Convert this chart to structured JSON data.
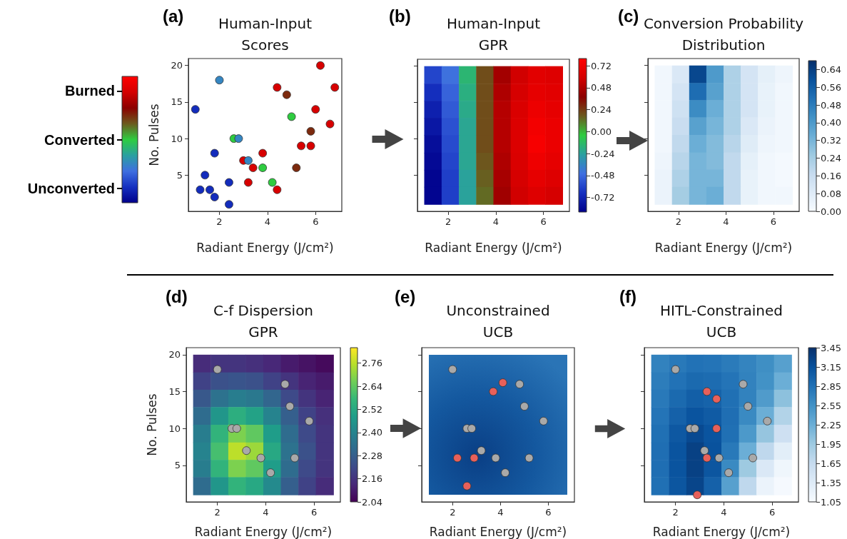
{
  "chart_data": [
    {
      "type": "scatter",
      "title": "(a)",
      "subtitle": "Human-Input Scores",
      "xlabel": "Radiant Energy (J/cm²)",
      "ylabel": "No. Pulses",
      "marker": "circle",
      "x": [
        6.2,
        2.0,
        4.4,
        6.8,
        4.8,
        1.0,
        6.0,
        5.0,
        6.6,
        5.8,
        2.6,
        2.8,
        5.4,
        5.8,
        1.8,
        3.8,
        3.0,
        3.2,
        3.4,
        3.8,
        5.2,
        1.4,
        2.4,
        3.2,
        4.2,
        1.2,
        1.6,
        4.4,
        1.8,
        2.4
      ],
      "values": [
        20,
        18,
        17,
        17,
        16,
        14,
        14,
        13,
        12,
        11,
        10,
        10,
        9,
        9,
        8,
        8,
        7,
        7,
        6,
        6,
        6,
        5,
        4,
        4,
        4,
        3,
        3,
        3,
        2,
        1
      ],
      "cvalues": [
        1,
        -0.5,
        1,
        1,
        0.5,
        -1,
        1,
        0,
        1,
        0.5,
        0,
        -0.5,
        1,
        1,
        -1,
        1,
        1,
        -0.5,
        1,
        0,
        0.5,
        -1,
        -1,
        1,
        0,
        -1,
        -1,
        1,
        -1,
        -1
      ],
      "clim": [
        -1.3,
        1.3
      ],
      "cticks": [
        {
          "value": -1,
          "label": "Unconverted"
        },
        {
          "value": 0,
          "label": "Converted"
        },
        {
          "value": 1,
          "label": "Burned"
        }
      ],
      "xlim": [
        0.71,
        7.09
      ],
      "xticks": [
        2,
        4,
        6
      ],
      "ylim": [
        0.05,
        20.95
      ],
      "yticks": [
        5,
        10,
        15,
        20
      ]
    },
    {
      "type": "heatmap",
      "title": "(b)",
      "subtitle": "Human-Input GPR",
      "xlabel": "Radiant Energy (J/cm²)",
      "x": [
        1.36,
        2.09,
        2.81,
        3.54,
        4.26,
        4.99,
        5.71,
        6.44
      ],
      "y": [
        18.8,
        16.4,
        14.1,
        11.7,
        9.3,
        6.9,
        4.6,
        2.2
      ],
      "cells": [
        [
          -0.6,
          -0.45,
          -0.15,
          0.2,
          0.45,
          0.58,
          0.66,
          0.64
        ],
        [
          -0.68,
          -0.5,
          -0.18,
          0.2,
          0.48,
          0.6,
          0.68,
          0.66
        ],
        [
          -0.74,
          -0.53,
          -0.2,
          0.2,
          0.5,
          0.62,
          0.71,
          0.68
        ],
        [
          -0.78,
          -0.56,
          -0.22,
          0.2,
          0.5,
          0.63,
          0.74,
          0.7
        ],
        [
          -0.82,
          -0.58,
          -0.22,
          0.2,
          0.5,
          0.63,
          0.76,
          0.7
        ],
        [
          -0.84,
          -0.6,
          -0.22,
          0.18,
          0.48,
          0.62,
          0.72,
          0.68
        ],
        [
          -0.86,
          -0.62,
          -0.24,
          0.16,
          0.46,
          0.6,
          0.68,
          0.64
        ],
        [
          -0.86,
          -0.62,
          -0.24,
          0.14,
          0.44,
          0.58,
          0.64,
          0.6
        ]
      ],
      "clim": [
        -0.88,
        0.8
      ],
      "cticks": [
        -0.72,
        -0.48,
        -0.24,
        {
          "value": 0,
          "label": "0.00"
        },
        0.24,
        0.48,
        0.72
      ],
      "xlim": [
        0.71,
        7.09
      ],
      "xticks": [
        2,
        4,
        6
      ],
      "ylim": [
        0.05,
        20.95
      ],
      "yticks": [
        5,
        10,
        15,
        20
      ],
      "tick_labels": "x"
    },
    {
      "type": "heatmap",
      "title": "(c)",
      "subtitle": "Conversion Probability Distribution",
      "xlabel": "Radiant Energy (J/cm²)",
      "x": [
        1.36,
        2.09,
        2.81,
        3.54,
        4.26,
        4.99,
        5.71,
        6.44
      ],
      "y": [
        18.8,
        16.4,
        14.1,
        11.7,
        9.3,
        6.9,
        4.6,
        2.2
      ],
      "cells": [
        [
          0.02,
          0.1,
          0.62,
          0.4,
          0.22,
          0.12,
          0.06,
          0.03
        ],
        [
          0.02,
          0.12,
          0.52,
          0.38,
          0.22,
          0.12,
          0.05,
          0.02
        ],
        [
          0.02,
          0.14,
          0.44,
          0.34,
          0.22,
          0.12,
          0.05,
          0.02
        ],
        [
          0.02,
          0.16,
          0.38,
          0.32,
          0.22,
          0.1,
          0.04,
          0.02
        ],
        [
          0.02,
          0.18,
          0.34,
          0.3,
          0.2,
          0.08,
          0.03,
          0.02
        ],
        [
          0.03,
          0.2,
          0.32,
          0.3,
          0.18,
          0.06,
          0.02,
          0.01
        ],
        [
          0.04,
          0.22,
          0.32,
          0.32,
          0.18,
          0.05,
          0.02,
          0.01
        ],
        [
          0.04,
          0.24,
          0.32,
          0.34,
          0.18,
          0.05,
          0.02,
          0.02
        ]
      ],
      "clim": [
        0,
        0.68
      ],
      "cticks": [
        {
          "value": 0,
          "label": "0.00"
        },
        0.08,
        0.16,
        0.24,
        0.32,
        {
          "value": 0.4,
          "label": "0.40"
        },
        0.48,
        0.56,
        0.64
      ],
      "xlim": [
        0.71,
        7.09
      ],
      "xticks": [
        2,
        4,
        6
      ],
      "ylim": [
        0.05,
        20.95
      ],
      "yticks": [
        5,
        10,
        15,
        20
      ],
      "tick_labels": "x"
    },
    {
      "type": "heatmap",
      "title": "(d)",
      "subtitle": "C-f Dispersion GPR",
      "xlabel": "Radiant Energy (J/cm²)",
      "ylabel": "No. Pulses",
      "marker": "circle",
      "x": [
        1.36,
        2.09,
        2.81,
        3.54,
        4.26,
        4.99,
        5.71,
        6.44
      ],
      "y": [
        18.8,
        16.4,
        14.1,
        11.7,
        9.3,
        6.9,
        4.6,
        2.2
      ],
      "cells": [
        [
          2.14,
          2.16,
          2.16,
          2.15,
          2.13,
          2.1,
          2.08,
          2.06
        ],
        [
          2.2,
          2.24,
          2.25,
          2.24,
          2.2,
          2.16,
          2.12,
          2.1
        ],
        [
          2.26,
          2.34,
          2.38,
          2.36,
          2.3,
          2.22,
          2.16,
          2.12
        ],
        [
          2.32,
          2.46,
          2.54,
          2.5,
          2.4,
          2.28,
          2.2,
          2.15
        ],
        [
          2.38,
          2.56,
          2.68,
          2.64,
          2.48,
          2.32,
          2.22,
          2.16
        ],
        [
          2.4,
          2.6,
          2.76,
          2.72,
          2.52,
          2.34,
          2.24,
          2.16
        ],
        [
          2.38,
          2.56,
          2.68,
          2.64,
          2.48,
          2.32,
          2.22,
          2.16
        ],
        [
          2.32,
          2.46,
          2.56,
          2.52,
          2.42,
          2.28,
          2.2,
          2.14
        ]
      ],
      "clim": [
        2.04,
        2.84
      ],
      "cticks": [
        2.04,
        2.16,
        2.28,
        {
          "value": 2.4,
          "label": "2.40"
        },
        2.52,
        2.64,
        2.76
      ],
      "series": [
        {
          "type": "scatter",
          "color": "#a9a9a9",
          "x": [
            2.0,
            4.8,
            5.0,
            5.8,
            2.6,
            2.8,
            3.2,
            3.8,
            5.2,
            4.2
          ],
          "values": [
            18,
            16,
            13,
            11,
            10,
            10,
            7,
            6,
            6,
            4
          ]
        }
      ],
      "xlim": [
        0.71,
        7.09
      ],
      "xticks": [
        2,
        4,
        6
      ],
      "ylim": [
        0.05,
        20.95
      ],
      "yticks": [
        5,
        10,
        15,
        20
      ]
    },
    {
      "type": "scatter",
      "title": "(e)",
      "subtitle": "Unconstrained UCB",
      "xlabel": "Radiant Energy (J/cm²)",
      "marker": "circle",
      "series": [
        {
          "type": "scatter",
          "color": "#a9a9a9",
          "x": [
            2.0,
            4.8,
            5.0,
            5.8,
            2.6,
            2.8,
            3.2,
            3.8,
            5.2,
            4.2
          ],
          "values": [
            18,
            16,
            13,
            11,
            10,
            10,
            7,
            6,
            6,
            4
          ]
        },
        {
          "type": "scatter",
          "color": "#e8605a",
          "x": [
            4.1,
            3.7,
            2.2,
            2.9,
            2.6
          ],
          "values": [
            16.2,
            15,
            6,
            6,
            2.2
          ]
        }
      ],
      "xlim": [
        0.71,
        7.09
      ],
      "xticks": [
        2,
        4,
        6
      ],
      "ylim": [
        0.05,
        20.95
      ],
      "yticks": [
        5,
        10,
        15,
        20
      ],
      "tick_labels": "x"
    },
    {
      "type": "heatmap",
      "title": "(f)",
      "subtitle": "HITL-Constrained UCB",
      "xlabel": "Radiant Energy (J/cm²)",
      "marker": "circle",
      "x": [
        1.36,
        2.09,
        2.81,
        3.54,
        4.26,
        4.99,
        5.71,
        6.44
      ],
      "y": [
        18.8,
        16.4,
        14.1,
        11.7,
        9.3,
        6.9,
        4.6,
        2.2
      ],
      "cells": [
        [
          2.7,
          2.78,
          2.84,
          2.82,
          2.76,
          2.68,
          2.58,
          2.4
        ],
        [
          2.74,
          2.84,
          2.92,
          2.9,
          2.82,
          2.7,
          2.55,
          2.25
        ],
        [
          2.78,
          2.92,
          3.02,
          2.98,
          2.86,
          2.7,
          2.45,
          2.05
        ],
        [
          2.82,
          3.0,
          3.12,
          3.06,
          2.88,
          2.62,
          2.25,
          1.8
        ],
        [
          2.86,
          3.08,
          3.22,
          3.12,
          2.86,
          2.48,
          2.0,
          1.55
        ],
        [
          2.88,
          3.12,
          3.3,
          3.14,
          2.78,
          2.25,
          1.7,
          1.3
        ],
        [
          2.88,
          3.12,
          3.3,
          3.1,
          2.62,
          1.95,
          1.4,
          1.15
        ],
        [
          2.86,
          3.1,
          3.26,
          3.0,
          2.4,
          1.7,
          1.2,
          1.08
        ]
      ],
      "clim": [
        1.05,
        3.45
      ],
      "cticks": [
        1.05,
        1.35,
        1.65,
        1.95,
        2.25,
        2.55,
        2.85,
        3.15,
        3.45
      ],
      "series": [
        {
          "type": "scatter",
          "color": "#a9a9a9",
          "x": [
            2.0,
            4.8,
            5.0,
            5.8,
            2.6,
            2.8,
            3.2,
            3.8,
            5.2,
            4.2
          ],
          "values": [
            18,
            16,
            13,
            11,
            10,
            10,
            7,
            6,
            6,
            4
          ]
        },
        {
          "type": "scatter",
          "color": "#e8605a",
          "x": [
            3.3,
            3.7,
            3.7,
            3.3,
            2.9
          ],
          "values": [
            15,
            14,
            10,
            6,
            1
          ]
        }
      ],
      "xlim": [
        0.71,
        7.09
      ],
      "xticks": [
        2,
        4,
        6
      ],
      "ylim": [
        0.05,
        20.95
      ],
      "yticks": [
        5,
        10,
        15,
        20
      ],
      "tick_labels": "x"
    }
  ]
}
